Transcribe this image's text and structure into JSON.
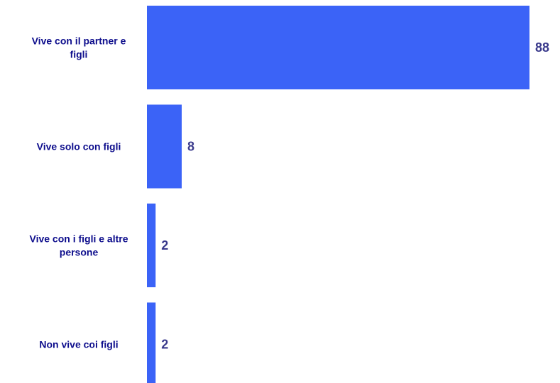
{
  "chart_data": {
    "type": "bar",
    "orientation": "horizontal",
    "categories": [
      [
        "Vive con il partner e",
        "figli"
      ],
      [
        "Vive solo con figli"
      ],
      [
        "Vive con i figli e altre",
        "persone"
      ],
      [
        "Non vive coi figli"
      ]
    ],
    "values": [
      88,
      8,
      2,
      2
    ],
    "value_labels": [
      "88",
      "8",
      "2",
      "2"
    ],
    "title": "",
    "xlabel": "",
    "ylabel": "",
    "xlim": [
      0,
      88
    ],
    "grid": false,
    "legend": "none",
    "bar_color": "#3b63f7",
    "label_color": "#0d0d8c",
    "value_color": "#3a3a8c"
  }
}
